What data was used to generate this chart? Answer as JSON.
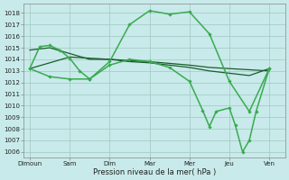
{
  "background_color": "#c8eaea",
  "grid_color": "#a0c8c0",
  "dark_color": "#1a5c2a",
  "light_color": "#3aaa50",
  "xlabel": "Pression niveau de la mer( hPa )",
  "ylim": [
    1005.5,
    1018.8
  ],
  "yticks": [
    1006,
    1007,
    1008,
    1009,
    1010,
    1011,
    1012,
    1013,
    1014,
    1015,
    1016,
    1017,
    1018
  ],
  "xtick_labels": [
    "Dimoun",
    "Sam",
    "Dim",
    "Mar",
    "Mer",
    "Jeu",
    "Ven"
  ],
  "xtick_positions": [
    0,
    1,
    2,
    3,
    4,
    5,
    6
  ],
  "xlim": [
    -0.15,
    6.4
  ],
  "line1": {
    "x": [
      0.0,
      0.25,
      0.5,
      0.75,
      1.0,
      1.25,
      1.5,
      2.0,
      2.5,
      3.0,
      3.5,
      4.0,
      4.5,
      5.0,
      5.5,
      6.0
    ],
    "y": [
      1013.2,
      1015.1,
      1015.2,
      1014.8,
      1014.1,
      1013.0,
      1012.3,
      1013.8,
      1017.0,
      1018.2,
      1017.9,
      1018.1,
      1016.2,
      1012.1,
      1009.5,
      1013.2
    ],
    "color": "#3aaa50",
    "lw": 1.1,
    "marker": "D",
    "ms": 2.2
  },
  "line2": {
    "x": [
      0.0,
      1.0,
      2.0,
      3.0,
      4.0,
      4.5,
      5.0,
      5.5,
      6.0
    ],
    "y": [
      1013.2,
      1014.2,
      1014.0,
      1013.8,
      1013.5,
      1013.3,
      1013.2,
      1013.1,
      1013.0
    ],
    "color": "#1a5c2a",
    "lw": 0.9,
    "marker": null,
    "ms": 0
  },
  "line3": {
    "x": [
      0.0,
      0.5,
      1.0,
      1.5,
      2.0,
      2.5,
      3.0,
      3.5,
      4.0,
      4.5,
      5.0,
      5.5,
      6.0
    ],
    "y": [
      1014.8,
      1015.0,
      1014.5,
      1014.0,
      1014.0,
      1013.8,
      1013.7,
      1013.5,
      1013.3,
      1013.0,
      1012.8,
      1012.6,
      1013.2
    ],
    "color": "#1a5c2a",
    "lw": 0.9,
    "marker": null,
    "ms": 0
  },
  "line4": {
    "x": [
      0.0,
      0.5,
      1.0,
      1.5,
      2.0,
      2.5,
      3.0,
      3.5,
      4.0,
      4.33,
      4.5,
      4.67,
      5.0,
      5.15,
      5.33,
      5.5,
      5.67,
      6.0
    ],
    "y": [
      1013.2,
      1012.5,
      1012.3,
      1012.3,
      1013.5,
      1014.0,
      1013.8,
      1013.3,
      1012.1,
      1009.6,
      1008.2,
      1009.5,
      1009.8,
      1008.3,
      1006.0,
      1007.0,
      1009.5,
      1013.2
    ],
    "color": "#3aaa50",
    "lw": 1.1,
    "marker": "D",
    "ms": 2.2
  }
}
